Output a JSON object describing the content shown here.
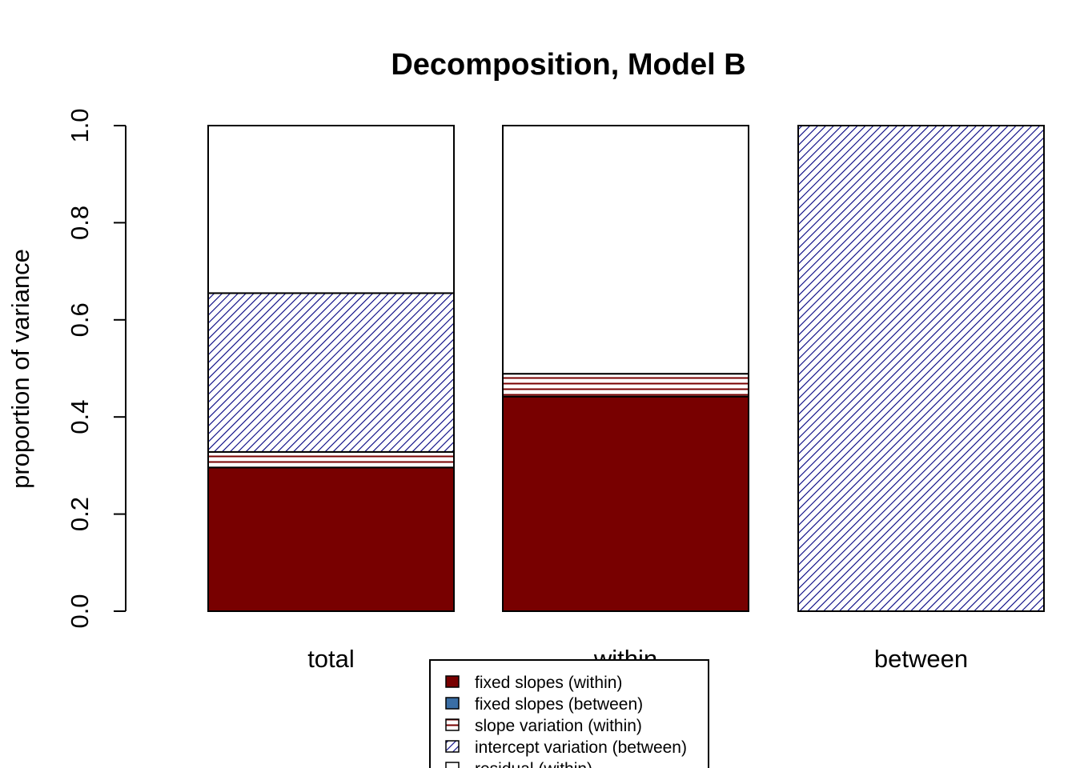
{
  "chart_data": {
    "type": "bar",
    "stacked": true,
    "title": "Decomposition, Model B",
    "xlabel": "",
    "ylabel": "proportion of variance",
    "ylim": [
      0,
      1
    ],
    "yticks": [
      "0.0",
      "0.2",
      "0.4",
      "0.6",
      "0.8",
      "1.0"
    ],
    "categories": [
      "total",
      "within",
      "between"
    ],
    "series": [
      {
        "name": "fixed slopes (within)",
        "values": [
          0.296,
          0.442,
          0.0
        ],
        "color": "#780000",
        "fill": "solid"
      },
      {
        "name": "fixed slopes (between)",
        "values": [
          0.0,
          0.0,
          0.0
        ],
        "color": "#3a6ea5",
        "fill": "solid"
      },
      {
        "name": "slope variation (within)",
        "values": [
          0.032,
          0.047,
          0.0
        ],
        "color": "#780000",
        "fill": "horizontal-lines"
      },
      {
        "name": "intercept variation (between)",
        "values": [
          0.327,
          0.0,
          1.0
        ],
        "color": "#000080",
        "fill": "diagonal-lines"
      },
      {
        "name": "residual (within)",
        "values": [
          0.345,
          0.511,
          0.0
        ],
        "color": "#ffffff",
        "fill": "empty"
      }
    ],
    "grid": false,
    "legend_position": "bottom-center"
  }
}
